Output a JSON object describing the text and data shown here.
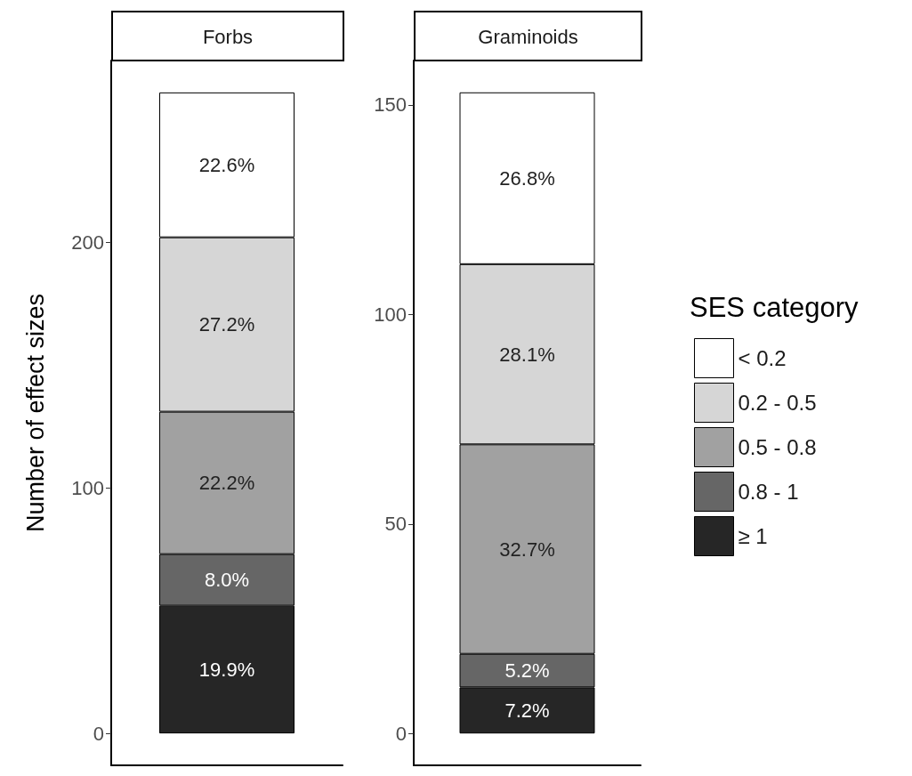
{
  "chart_data": [
    {
      "type": "bar",
      "title": "Forbs",
      "ylabel": "Number of effect sizes",
      "categories": [
        null
      ],
      "stacked": true,
      "ylim": [
        -13,
        274
      ],
      "yticks": [
        0,
        100,
        200
      ],
      "grid": false,
      "legend": false,
      "tick_labels": "y",
      "series": [
        {
          "color": "#262626",
          "values": [
            52
          ]
        },
        {
          "color": "#666666",
          "values": [
            21
          ]
        },
        {
          "color": "#a1a1a1",
          "values": [
            58
          ]
        },
        {
          "color": "#d6d6d6",
          "values": [
            71
          ]
        },
        {
          "color": "#ffffff",
          "values": [
            59
          ]
        }
      ],
      "annotations": [
        "19.9%",
        "8.0%",
        "22.2%",
        "27.2%",
        "22.6%"
      ]
    },
    {
      "type": "bar",
      "title": "Graminoids",
      "legend_title": "SES category",
      "categories": [
        null
      ],
      "stacked": true,
      "ylim": [
        -7.6,
        160.6
      ],
      "yticks": [
        0,
        50,
        100,
        150
      ],
      "grid": false,
      "legend": "right",
      "tick_labels": "y",
      "series": [
        {
          "name": "≥ 1",
          "color": "#262626",
          "values": [
            11
          ]
        },
        {
          "name": "0.8 - 1",
          "color": "#666666",
          "values": [
            8
          ]
        },
        {
          "name": "0.5 - 0.8",
          "color": "#a1a1a1",
          "values": [
            50
          ]
        },
        {
          "name": "0.2 - 0.5",
          "color": "#d6d6d6",
          "values": [
            43
          ]
        },
        {
          "name": "< 0.2",
          "color": "#ffffff",
          "values": [
            41
          ]
        }
      ],
      "annotations": [
        "7.2%",
        "5.2%",
        "32.7%",
        "28.1%",
        "26.8%"
      ]
    }
  ]
}
